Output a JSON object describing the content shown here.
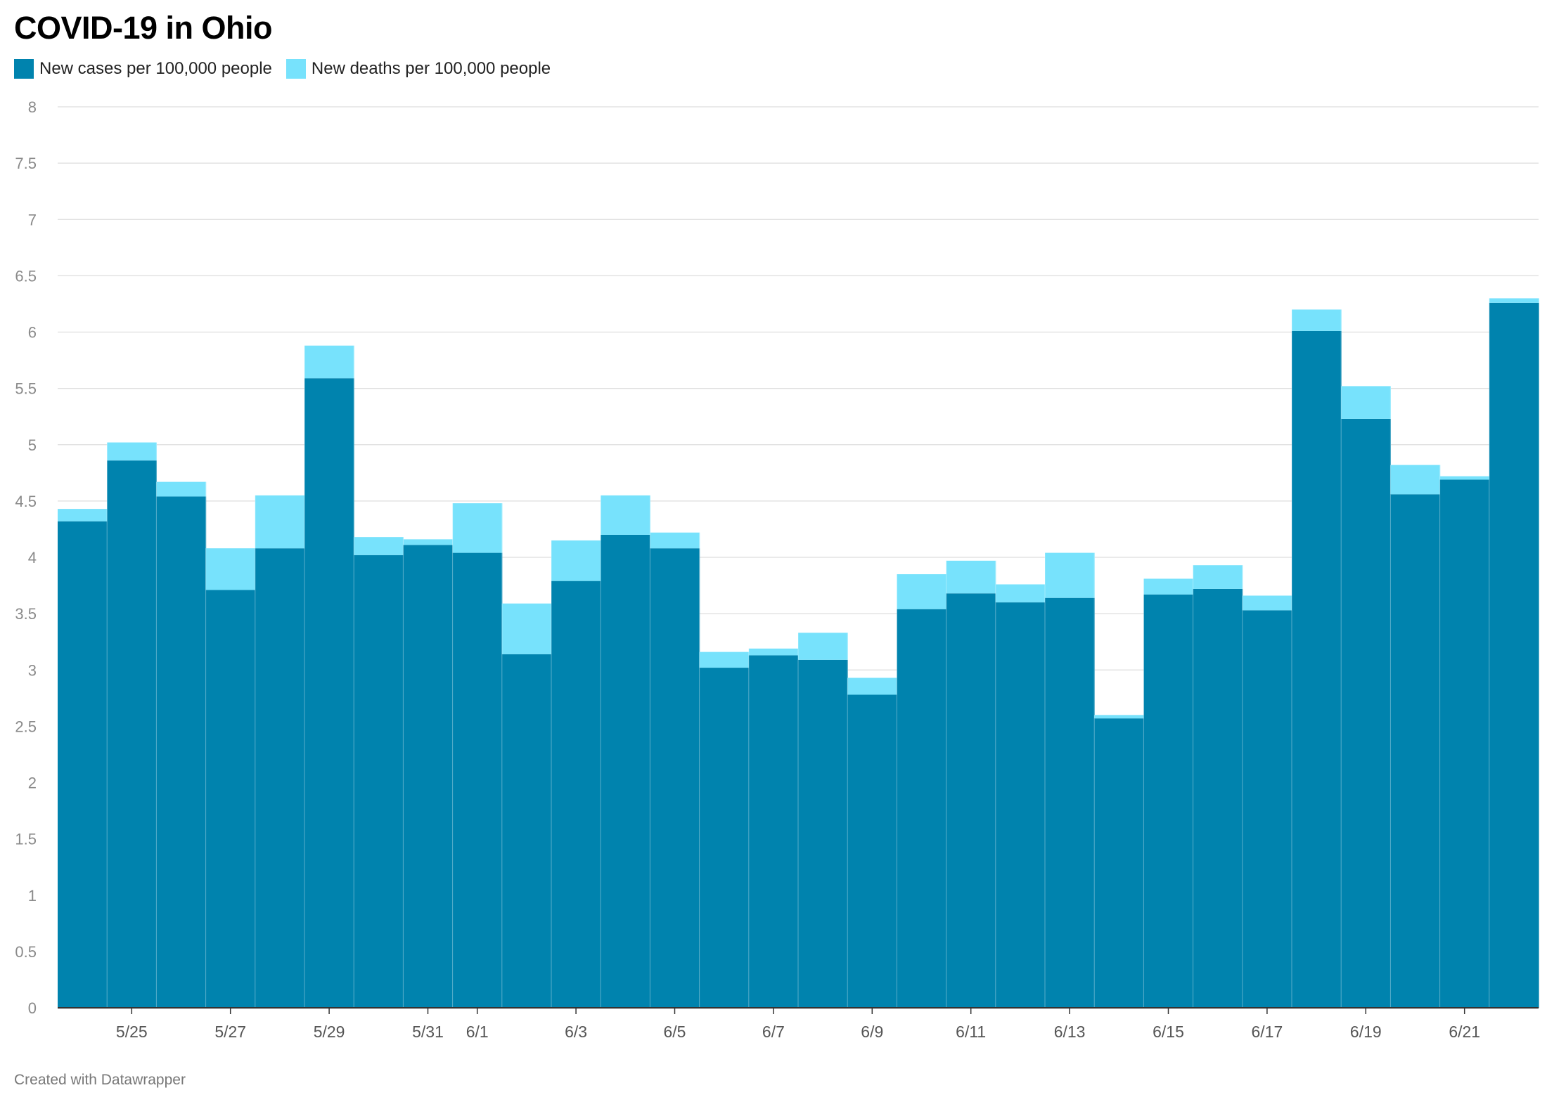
{
  "title": "COVID-19 in Ohio",
  "credit": "Created with Datawrapper",
  "colors": {
    "cases": "#0083AE",
    "deaths": "#77E2FC",
    "grid": "#dddddd",
    "axis": "#333333"
  },
  "chart_data": {
    "type": "area",
    "stacked": true,
    "step": true,
    "title": "COVID-19 in Ohio",
    "ylim": [
      0,
      8
    ],
    "yticks": [
      0,
      0.5,
      1,
      1.5,
      2,
      2.5,
      3,
      3.5,
      4,
      4.5,
      5,
      5.5,
      6,
      6.5,
      7,
      7.5,
      8
    ],
    "ytick_labels": [
      "0",
      "0.5",
      "1",
      "1.5",
      "2",
      "2.5",
      "3",
      "3.5",
      "4",
      "4.5",
      "5",
      "5.5",
      "6",
      "6.5",
      "7",
      "7.5",
      "8"
    ],
    "grid": true,
    "legend_position": "top-left",
    "x": [
      "5/24",
      "5/25",
      "5/26",
      "5/27",
      "5/28",
      "5/29",
      "5/30",
      "5/31",
      "6/1",
      "6/2",
      "6/3",
      "6/4",
      "6/5",
      "6/6",
      "6/7",
      "6/8",
      "6/9",
      "6/10",
      "6/11",
      "6/12",
      "6/13",
      "6/14",
      "6/15",
      "6/16",
      "6/17",
      "6/18",
      "6/19",
      "6/20",
      "6/21",
      "6/22"
    ],
    "xtick_labels": [
      "5/25",
      "5/27",
      "5/29",
      "5/31",
      "6/1",
      "6/3",
      "6/5",
      "6/7",
      "6/9",
      "6/11",
      "6/13",
      "6/15",
      "6/17",
      "6/19",
      "6/21"
    ],
    "series": [
      {
        "name": "New cases per 100,000 people",
        "values": [
          4.32,
          4.86,
          4.54,
          3.71,
          4.08,
          5.59,
          4.02,
          4.11,
          4.04,
          3.14,
          3.79,
          4.2,
          4.08,
          3.02,
          3.13,
          3.09,
          2.78,
          3.54,
          3.68,
          3.6,
          3.64,
          2.57,
          3.67,
          3.72,
          3.53,
          6.01,
          5.23,
          4.56,
          4.69,
          6.26
        ]
      },
      {
        "name": "New deaths per 100,000 people",
        "values": [
          0.11,
          0.16,
          0.13,
          0.37,
          0.47,
          0.29,
          0.16,
          0.05,
          0.44,
          0.45,
          0.36,
          0.35,
          0.14,
          0.14,
          0.06,
          0.24,
          0.15,
          0.31,
          0.29,
          0.16,
          0.4,
          0.03,
          0.14,
          0.21,
          0.13,
          0.19,
          0.29,
          0.26,
          0.03,
          0.04
        ]
      }
    ]
  }
}
